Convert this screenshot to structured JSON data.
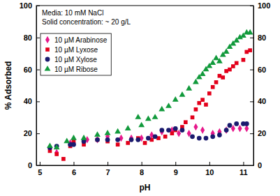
{
  "chart_data": {
    "type": "scatter",
    "x_label": "pH",
    "y_label": "% Adsorbed",
    "annotations": [
      "Media: 10 mM NaCl",
      "Solid concentration: ~ 20 g/L"
    ],
    "xlim": [
      4.9,
      11.3
    ],
    "xticks": [
      5,
      6,
      7,
      8,
      9,
      10,
      11
    ],
    "ylim": [
      0,
      100
    ],
    "yticks": [
      0,
      20,
      40,
      60,
      80,
      100
    ],
    "y2lim": [
      0,
      100
    ],
    "y2ticks": [
      0,
      20,
      40,
      60,
      80,
      100
    ],
    "legend": "upper left",
    "series": [
      {
        "name": "10 µM Arabinose",
        "color": "#e6198c",
        "marker": "diamond",
        "x": [
          5.3,
          5.5,
          5.9,
          6.0,
          6.4,
          6.7,
          7.0,
          7.4,
          7.7,
          8.0,
          8.3,
          8.6,
          8.9,
          9.1,
          9.4,
          9.6,
          9.8,
          10.1,
          10.3,
          10.5,
          10.7,
          10.9,
          11.1
        ],
        "values": [
          11,
          8,
          14,
          14,
          16,
          16,
          18,
          17,
          17,
          17,
          19,
          21,
          22,
          20,
          20,
          24,
          22,
          20,
          21,
          22,
          23,
          23,
          23
        ]
      },
      {
        "name": "10 µM Lyxose",
        "color": "#e3001b",
        "marker": "square",
        "x": [
          5.3,
          5.5,
          5.7,
          5.9,
          6.0,
          6.3,
          6.7,
          7.0,
          7.3,
          7.6,
          7.9,
          8.1,
          8.3,
          8.5,
          8.7,
          8.9,
          9.0,
          9.2,
          9.3,
          9.5,
          9.6,
          9.7,
          9.8,
          9.9,
          10.0,
          10.1,
          10.2,
          10.3,
          10.4,
          10.5,
          10.6,
          10.7,
          10.8,
          11.0,
          11.1,
          11.2
        ],
        "values": [
          9,
          7,
          4,
          12,
          15,
          13,
          16,
          15,
          13,
          14,
          17,
          14,
          16,
          17,
          18,
          20,
          22,
          24,
          27,
          30,
          35,
          39,
          41,
          38,
          45,
          49,
          52,
          56,
          55,
          59,
          60,
          62,
          64,
          66,
          71,
          72
        ]
      },
      {
        "name": "10 µM Xylose",
        "color": "#1a1a6e",
        "marker": "circle",
        "x": [
          5.3,
          5.5,
          5.9,
          6.0,
          6.3,
          6.7,
          7.0,
          7.3,
          7.7,
          7.9,
          8.2,
          8.4,
          8.6,
          8.8,
          9.0,
          9.2,
          9.5,
          9.7,
          9.9,
          10.1,
          10.3,
          10.5,
          10.6,
          10.8,
          11.0,
          11.1
        ],
        "values": [
          11,
          12,
          13,
          13,
          15,
          16,
          16,
          16,
          16,
          16,
          17,
          18,
          22,
          22,
          23,
          22,
          18,
          17,
          17,
          18,
          19,
          22,
          25,
          26,
          26,
          26
        ]
      },
      {
        "name": "10 µM Ribose",
        "color": "#129a3c",
        "marker": "triangle",
        "x": [
          5.3,
          5.5,
          5.8,
          6.0,
          6.3,
          6.7,
          7.0,
          7.3,
          7.6,
          7.9,
          8.0,
          8.2,
          8.4,
          8.6,
          8.8,
          9.0,
          9.2,
          9.4,
          9.6,
          9.7,
          9.8,
          9.9,
          10.0,
          10.1,
          10.2,
          10.3,
          10.4,
          10.5,
          10.6,
          10.7,
          10.8,
          10.9,
          11.0,
          11.1,
          11.2
        ],
        "values": [
          12,
          11,
          15,
          17,
          17,
          19,
          20,
          21,
          23,
          30,
          25,
          29,
          30,
          35,
          37,
          41,
          44,
          48,
          52,
          55,
          57,
          60,
          62,
          64,
          67,
          65,
          69,
          71,
          74,
          76,
          78,
          80,
          81,
          83,
          83
        ]
      }
    ]
  }
}
